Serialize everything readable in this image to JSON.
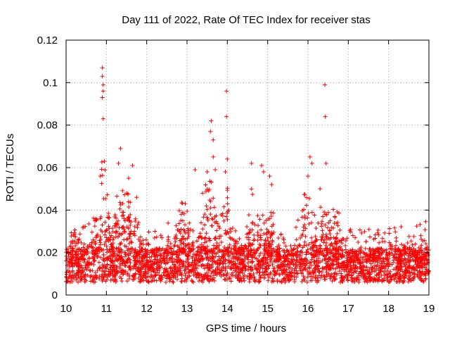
{
  "chart_data": {
    "type": "scatter",
    "title": "Day 111 of 2022, Rate Of TEC Index for receiver stas",
    "xlabel": "GPS time / hours",
    "ylabel": "ROTI / TECUs",
    "xlim": [
      10,
      19
    ],
    "ylim": [
      0,
      0.12
    ],
    "xticks": [
      10,
      11,
      12,
      13,
      14,
      15,
      16,
      17,
      18,
      19
    ],
    "xtick_labels": [
      "10",
      "11",
      "12",
      "13",
      "14",
      "15",
      "16",
      "17",
      "18",
      "19"
    ],
    "yticks": [
      0,
      0.02,
      0.04,
      0.06,
      0.08,
      0.1,
      0.12
    ],
    "ytick_labels": [
      "0",
      "0.02",
      "0.04",
      "0.06",
      "0.08",
      "0.1",
      "0.12"
    ],
    "grid": true,
    "marker": "+",
    "color": "#ff0000",
    "series": [
      {
        "name": "ROTI",
        "peaks": [
          {
            "x": 10.9,
            "y": 0.107
          },
          {
            "x": 10.9,
            "y": 0.103
          },
          {
            "x": 10.92,
            "y": 0.099
          },
          {
            "x": 10.92,
            "y": 0.096
          },
          {
            "x": 10.9,
            "y": 0.093
          },
          {
            "x": 10.92,
            "y": 0.083
          },
          {
            "x": 10.85,
            "y": 0.056
          },
          {
            "x": 10.95,
            "y": 0.063
          },
          {
            "x": 11.35,
            "y": 0.069
          },
          {
            "x": 11.3,
            "y": 0.062
          },
          {
            "x": 11.65,
            "y": 0.061
          },
          {
            "x": 11.55,
            "y": 0.055
          },
          {
            "x": 11.5,
            "y": 0.048
          },
          {
            "x": 11.75,
            "y": 0.046
          },
          {
            "x": 13.2,
            "y": 0.059
          },
          {
            "x": 13.6,
            "y": 0.082
          },
          {
            "x": 13.58,
            "y": 0.077
          },
          {
            "x": 13.65,
            "y": 0.073
          },
          {
            "x": 13.65,
            "y": 0.065
          },
          {
            "x": 13.7,
            "y": 0.059
          },
          {
            "x": 13.5,
            "y": 0.058
          },
          {
            "x": 13.98,
            "y": 0.096
          },
          {
            "x": 13.98,
            "y": 0.084
          },
          {
            "x": 14.0,
            "y": 0.064
          },
          {
            "x": 13.95,
            "y": 0.058
          },
          {
            "x": 14.6,
            "y": 0.062
          },
          {
            "x": 14.85,
            "y": 0.061
          },
          {
            "x": 14.9,
            "y": 0.058
          },
          {
            "x": 15.05,
            "y": 0.056
          },
          {
            "x": 15.1,
            "y": 0.052
          },
          {
            "x": 16.05,
            "y": 0.065
          },
          {
            "x": 16.1,
            "y": 0.062
          },
          {
            "x": 16.0,
            "y": 0.056
          },
          {
            "x": 16.42,
            "y": 0.099
          },
          {
            "x": 16.43,
            "y": 0.084
          },
          {
            "x": 16.45,
            "y": 0.062
          },
          {
            "x": 16.3,
            "y": 0.05
          }
        ]
      }
    ]
  }
}
